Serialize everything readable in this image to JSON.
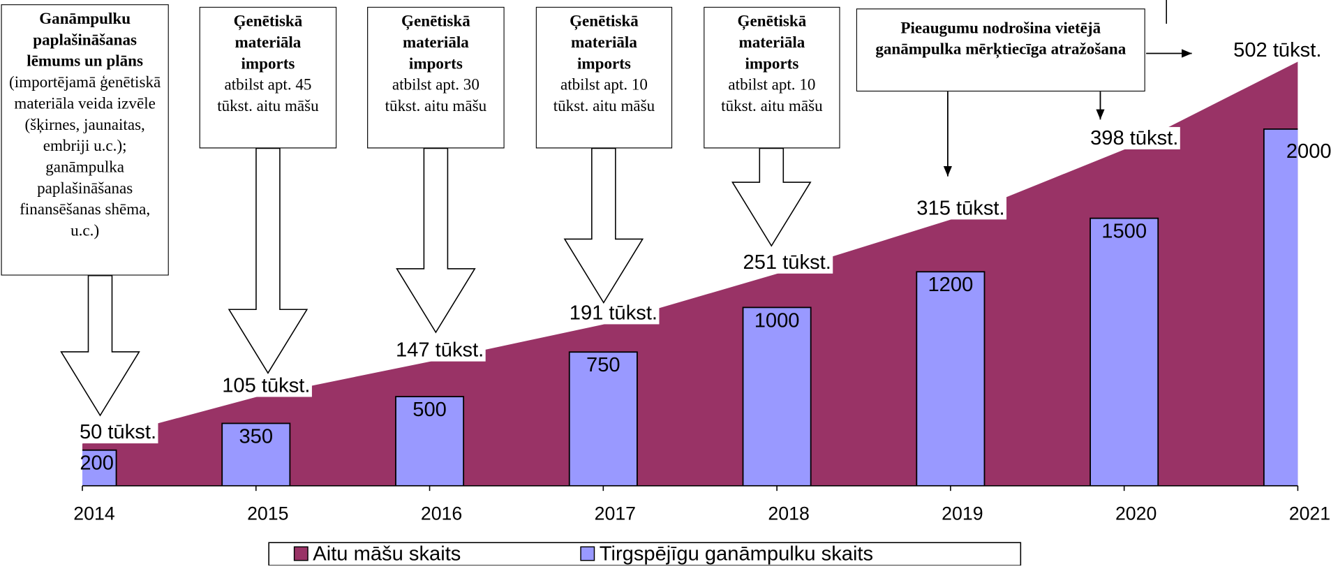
{
  "chart_data": {
    "type": "combo",
    "categories": [
      "2014",
      "2015",
      "2016",
      "2017",
      "2018",
      "2019",
      "2020",
      "2021"
    ],
    "series": [
      {
        "name": "Aitu māšu skaits",
        "type": "area",
        "axis": "y2",
        "color": "#993366",
        "values": [
          50,
          105,
          147,
          191,
          251,
          315,
          398,
          502
        ],
        "value_labels": [
          "50 tūkst.",
          "105 tūkst.",
          "147 tūkst.",
          "191 tūkst.",
          "251 tūkst.",
          "315 tūkst.",
          "398 tūkst.",
          "502 tūkst."
        ]
      },
      {
        "name": "Tirgspējīgu ganāmpulku skaits",
        "type": "bar",
        "color": "#9999ff",
        "values": [
          200,
          350,
          500,
          750,
          1000,
          1200,
          1500,
          2000
        ]
      }
    ],
    "ylim": [
      0,
      2700
    ],
    "y2lim": [
      0,
      570
    ],
    "legend": "bottom",
    "annotations": [
      {
        "title": "Ganāmpulku paplašināšanas lēmums un plāns",
        "text": "(importējamā ģenētiskā materiāla veida izvēle (šķirnes, jaunaitas, embriji u.c.); ganāmpulka paplašināšanas finansēšanas shēma, u.c.)"
      },
      {
        "title": "Ģenētiskā materiāla imports",
        "text": "atbilst apt. 45 tūkst. aitu māšu"
      },
      {
        "title": "Ģenētiskā materiāla imports",
        "text": "atbilst apt. 30 tūkst. aitu māšu"
      },
      {
        "title": "Ģenētiskā materiāla imports",
        "text": "atbilst apt. 10 tūkst. aitu māšu"
      },
      {
        "title": "Ģenētiskā materiāla imports",
        "text": "atbilst apt. 10 tūkst. aitu māšu"
      },
      {
        "title": "Pieaugumu nodrošina vietējā ganāmpulka mērķtiecīga atražošana"
      }
    ]
  }
}
